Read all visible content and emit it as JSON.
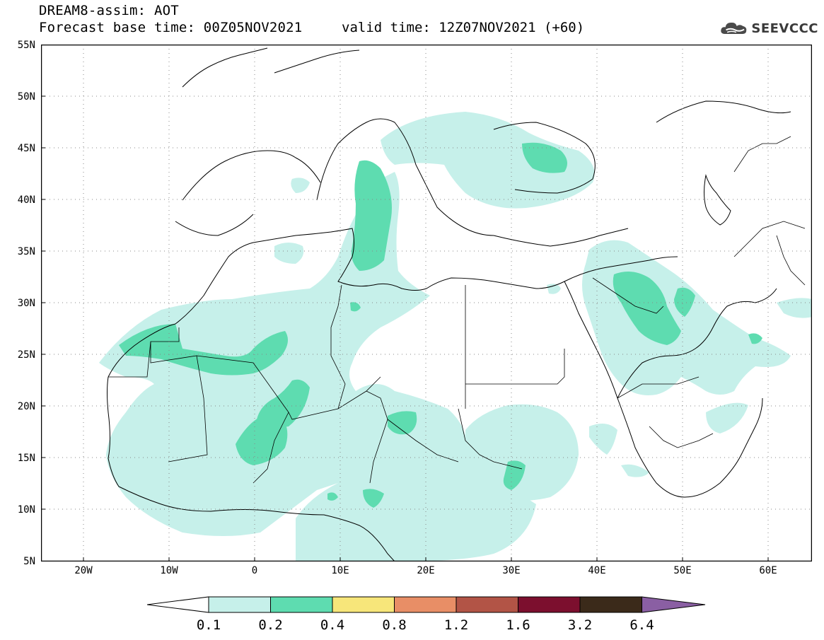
{
  "header": {
    "title": "DREAM8-assim: AOT",
    "base_time": "Forecast base time: 00Z05NOV2021",
    "valid_time": "valid time: 12Z07NOV2021 (+60)"
  },
  "logo": {
    "text": "SEEVCCC",
    "icon": "cloud-icon"
  },
  "map": {
    "y_ticks": [
      "55N",
      "50N",
      "45N",
      "40N",
      "35N",
      "30N",
      "25N",
      "20N",
      "15N",
      "10N",
      "5N"
    ],
    "x_ticks": [
      "20W",
      "10W",
      "0",
      "10E",
      "20E",
      "30E",
      "40E",
      "50E",
      "60E"
    ],
    "lon_range": [
      -25,
      65
    ],
    "lat_range": [
      5,
      55
    ]
  },
  "colorbar": {
    "labels": [
      "0.1",
      "0.2",
      "0.4",
      "0.8",
      "1.2",
      "1.6",
      "3.2",
      "6.4"
    ],
    "colors": [
      "#c6f0ea",
      "#5edcb0",
      "#f7e67a",
      "#e88e66",
      "#b25446",
      "#7c0f2e",
      "#3b2a1a",
      "#8a5fa3"
    ],
    "underflow_color": "#ffffff"
  }
}
